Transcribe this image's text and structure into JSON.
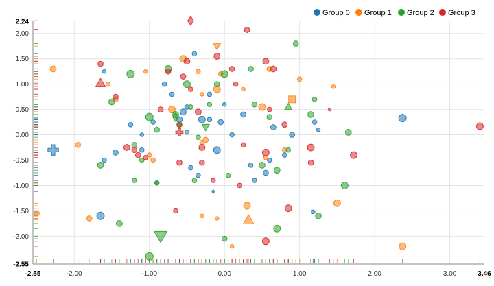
{
  "chart_data": {
    "type": "scatter",
    "title": "",
    "xlabel": "",
    "ylabel": "",
    "xlim": [
      -2.55,
      3.46
    ],
    "ylim": [
      -2.55,
      2.24
    ],
    "grid": true,
    "legend_position": "top-right",
    "x_ticks": [
      -2.0,
      -1.0,
      0.0,
      1.0,
      2.0,
      3.0
    ],
    "y_ticks": [
      -2.0,
      -1.5,
      -1.0,
      -0.5,
      0.0,
      0.5,
      1.0,
      1.5,
      2.0
    ],
    "x_tick_labels": [
      "-2.00",
      "-1.00",
      "0.00",
      "1.00",
      "2.00",
      "3.00"
    ],
    "y_tick_labels": [
      "-2.00",
      "-1.50",
      "-1.00",
      "-0.50",
      "0.00",
      "0.50",
      "1.00",
      "1.50",
      "2.00"
    ],
    "x_min_label": "-2.55",
    "x_max_label": "3.46",
    "y_min_label": "-2.55",
    "y_max_label": "2.24",
    "series": [
      {
        "name": "Group 0",
        "color": "#1f77b4",
        "points": [
          [
            -1.6,
            1.25,
            2.5,
            "circle"
          ],
          [
            -1.25,
            0.2,
            3,
            "circle"
          ],
          [
            -1.6,
            -0.5,
            3,
            "circle"
          ],
          [
            -1.45,
            -0.35,
            3.5,
            "circle"
          ],
          [
            -1.1,
            -0.3,
            3,
            "circle"
          ],
          [
            -0.95,
            0.25,
            3,
            "circle"
          ],
          [
            -0.9,
            -0.95,
            2.5,
            "circle"
          ],
          [
            -0.55,
            0.45,
            4,
            "circle"
          ],
          [
            -0.5,
            0.05,
            3,
            "circle"
          ],
          [
            -0.4,
            1.6,
            3,
            "circle"
          ],
          [
            -0.3,
            0.3,
            4.5,
            "circle"
          ],
          [
            -0.2,
            0.8,
            3,
            "circle"
          ],
          [
            -0.05,
            0.25,
            3.5,
            "circle"
          ],
          [
            0.0,
            0.6,
            2.5,
            "circle"
          ],
          [
            -0.1,
            -0.3,
            4.5,
            "circle"
          ],
          [
            0.1,
            0.0,
            3,
            "circle"
          ],
          [
            0.25,
            0.4,
            3.5,
            "circle"
          ],
          [
            0.35,
            -0.6,
            3,
            "circle"
          ],
          [
            0.4,
            -0.9,
            3,
            "circle"
          ],
          [
            0.55,
            -0.75,
            3.5,
            "circle"
          ],
          [
            0.6,
            -0.5,
            3,
            "circle"
          ],
          [
            0.65,
            0.15,
            3.5,
            "circle"
          ],
          [
            0.9,
            0.0,
            3.5,
            "circle"
          ],
          [
            1.2,
            0.25,
            3,
            "circle"
          ],
          [
            1.25,
            0.1,
            2.5,
            "circle"
          ],
          [
            -0.35,
            -0.8,
            3,
            "circle"
          ],
          [
            -0.45,
            -0.65,
            3,
            "circle"
          ],
          [
            -0.8,
            1.0,
            3,
            "circle"
          ],
          [
            -0.7,
            0.8,
            3,
            "circle"
          ],
          [
            -0.2,
            0.3,
            3,
            "circle"
          ],
          [
            -1.1,
            0.0,
            2.5,
            "circle"
          ],
          [
            2.37,
            0.33,
            5,
            "circle"
          ],
          [
            -1.65,
            -1.6,
            5,
            "circle"
          ],
          [
            -0.6,
            0.3,
            4,
            "circle"
          ],
          [
            -0.5,
            0.55,
            3,
            "circle"
          ],
          [
            0.8,
            -0.4,
            3,
            "circle"
          ],
          [
            1.18,
            -1.52,
            2.5,
            "circle"
          ],
          [
            -2.28,
            -0.3,
            5,
            "cross"
          ],
          [
            -0.15,
            -1.12,
            1.8,
            "diamond"
          ]
        ]
      },
      {
        "name": "Group 1",
        "color": "#ff7f0e",
        "points": [
          [
            -2.28,
            1.3,
            4,
            "circle"
          ],
          [
            -1.95,
            -0.2,
            3.5,
            "circle"
          ],
          [
            -1.8,
            -1.65,
            3.5,
            "circle"
          ],
          [
            -2.5,
            -1.55,
            3.5,
            "circle"
          ],
          [
            -1.45,
            0.7,
            3.5,
            "circle"
          ],
          [
            -1.55,
            1.0,
            3,
            "circle"
          ],
          [
            -1.0,
            -0.4,
            3,
            "circle"
          ],
          [
            -0.95,
            -0.5,
            3,
            "circle"
          ],
          [
            -0.7,
            0.5,
            4.5,
            "circle"
          ],
          [
            -0.55,
            1.5,
            4.5,
            "circle"
          ],
          [
            -0.35,
            1.25,
            3,
            "circle"
          ],
          [
            -0.3,
            0.8,
            2.5,
            "circle"
          ],
          [
            -0.25,
            -0.1,
            3.5,
            "circle"
          ],
          [
            -0.3,
            -0.15,
            3,
            "circle"
          ],
          [
            -0.1,
            0.9,
            4.5,
            "circle"
          ],
          [
            0.3,
            -1.4,
            4.5,
            "circle"
          ],
          [
            0.5,
            0.55,
            4.5,
            "circle"
          ],
          [
            0.55,
            -0.45,
            3,
            "circle"
          ],
          [
            0.6,
            1.3,
            3.5,
            "circle"
          ],
          [
            0.8,
            -0.3,
            3,
            "circle"
          ],
          [
            1.0,
            1.1,
            3,
            "circle"
          ],
          [
            1.45,
            0.95,
            2.5,
            "circle"
          ],
          [
            1.5,
            -1.35,
            4.5,
            "circle"
          ],
          [
            2.37,
            -2.2,
            4.5,
            "circle"
          ],
          [
            -0.1,
            -1.65,
            2.5,
            "circle"
          ],
          [
            -0.3,
            -1.6,
            2.5,
            "circle"
          ],
          [
            0.1,
            -2.2,
            2.5,
            "circle"
          ],
          [
            -0.05,
            1.2,
            3,
            "circle"
          ],
          [
            0.25,
            0.9,
            2.5,
            "circle"
          ],
          [
            -1.05,
            1.25,
            2.5,
            "circle"
          ],
          [
            -0.1,
            1.75,
            3.5,
            "tri_down"
          ],
          [
            0.9,
            0.7,
            4.5,
            "square"
          ],
          [
            0.32,
            -1.68,
            5,
            "triangle"
          ]
        ]
      },
      {
        "name": "Group 2",
        "color": "#2ca02c",
        "points": [
          [
            -1.65,
            -0.6,
            4,
            "circle"
          ],
          [
            -1.5,
            0.65,
            4,
            "circle"
          ],
          [
            -1.25,
            1.2,
            5,
            "circle"
          ],
          [
            -1.2,
            -0.2,
            3.5,
            "circle"
          ],
          [
            -1.1,
            -0.5,
            3,
            "circle"
          ],
          [
            -1.0,
            0.35,
            5,
            "circle"
          ],
          [
            -0.9,
            0.1,
            3.5,
            "circle"
          ],
          [
            -0.9,
            -0.95,
            3,
            "circle"
          ],
          [
            -0.75,
            1.3,
            4.5,
            "circle"
          ],
          [
            -0.65,
            0.4,
            4,
            "circle"
          ],
          [
            -0.5,
            1.0,
            4.5,
            "circle"
          ],
          [
            -0.45,
            0.55,
            3,
            "circle"
          ],
          [
            -0.4,
            -0.9,
            3,
            "circle"
          ],
          [
            -0.35,
            -0.05,
            3,
            "circle"
          ],
          [
            0.0,
            1.2,
            4.5,
            "circle"
          ],
          [
            -0.1,
            1.0,
            3.5,
            "circle"
          ],
          [
            0.0,
            -2.05,
            3.5,
            "circle"
          ],
          [
            0.35,
            1.3,
            3.5,
            "circle"
          ],
          [
            0.4,
            0.6,
            3.5,
            "circle"
          ],
          [
            0.5,
            -0.6,
            4,
            "circle"
          ],
          [
            0.6,
            0.35,
            3.5,
            "circle"
          ],
          [
            0.7,
            -0.7,
            4,
            "circle"
          ],
          [
            0.85,
            -0.3,
            3,
            "circle"
          ],
          [
            0.95,
            1.8,
            3.5,
            "circle"
          ],
          [
            1.15,
            0.4,
            4,
            "circle"
          ],
          [
            1.2,
            0.7,
            3,
            "circle"
          ],
          [
            1.25,
            -1.6,
            4,
            "circle"
          ],
          [
            1.65,
            0.05,
            4,
            "circle"
          ],
          [
            1.6,
            -1.0,
            4.5,
            "circle"
          ],
          [
            0.7,
            -1.85,
            4.5,
            "circle"
          ],
          [
            -1.4,
            -1.75,
            4,
            "circle"
          ],
          [
            -1.2,
            -0.9,
            3,
            "circle"
          ],
          [
            -1.0,
            -2.4,
            5,
            "circle"
          ],
          [
            -0.2,
            0.6,
            3,
            "circle"
          ],
          [
            -0.6,
            0.2,
            3.5,
            "circle"
          ],
          [
            0.05,
            -0.8,
            3,
            "circle"
          ],
          [
            -0.85,
            -2.0,
            6,
            "tri_down"
          ],
          [
            -0.25,
            0.15,
            3.5,
            "tri_down"
          ],
          [
            0.85,
            0.55,
            3.5,
            "triangle"
          ],
          [
            -0.65,
            0.35,
            4,
            "diamond"
          ]
        ]
      },
      {
        "name": "Group 3",
        "color": "#d62728",
        "points": [
          [
            -1.45,
            0.75,
            3.5,
            "circle"
          ],
          [
            -1.3,
            -0.25,
            4,
            "circle"
          ],
          [
            -1.2,
            -0.3,
            3.5,
            "circle"
          ],
          [
            -1.15,
            -0.4,
            3.5,
            "circle"
          ],
          [
            -1.05,
            -0.45,
            3,
            "circle"
          ],
          [
            -0.85,
            0.5,
            3.5,
            "circle"
          ],
          [
            -0.75,
            1.25,
            3.5,
            "circle"
          ],
          [
            -0.6,
            -0.55,
            3.5,
            "circle"
          ],
          [
            -0.5,
            1.45,
            4,
            "circle"
          ],
          [
            -0.45,
            0.9,
            3,
            "circle"
          ],
          [
            -0.35,
            0.45,
            4,
            "circle"
          ],
          [
            -0.3,
            -0.25,
            4,
            "circle"
          ],
          [
            -0.15,
            -0.9,
            3,
            "circle"
          ],
          [
            -0.1,
            1.55,
            4,
            "circle"
          ],
          [
            0.1,
            1.3,
            3.5,
            "circle"
          ],
          [
            0.15,
            1.0,
            3,
            "circle"
          ],
          [
            0.25,
            -0.2,
            3,
            "circle"
          ],
          [
            0.3,
            2.07,
            3.5,
            "circle"
          ],
          [
            0.55,
            1.45,
            4,
            "circle"
          ],
          [
            0.6,
            0.5,
            3,
            "circle"
          ],
          [
            0.65,
            1.3,
            4,
            "circle"
          ],
          [
            0.8,
            0.2,
            3.5,
            "circle"
          ],
          [
            0.55,
            -0.35,
            4.5,
            "circle"
          ],
          [
            0.55,
            -2.1,
            4.5,
            "circle"
          ],
          [
            0.85,
            -1.45,
            4.5,
            "circle"
          ],
          [
            1.15,
            -0.25,
            4.5,
            "circle"
          ],
          [
            1.15,
            -0.55,
            3.5,
            "circle"
          ],
          [
            1.72,
            -0.4,
            4.5,
            "circle"
          ],
          [
            3.4,
            0.17,
            4.5,
            "circle"
          ],
          [
            -0.6,
            0.2,
            3,
            "circle"
          ],
          [
            -0.3,
            -0.55,
            3.5,
            "circle"
          ],
          [
            -0.65,
            -1.5,
            3,
            "circle"
          ],
          [
            -1.65,
            1.4,
            3.5,
            "circle"
          ],
          [
            -0.55,
            1.15,
            3.5,
            "circle"
          ],
          [
            1.4,
            0.5,
            2,
            "circle"
          ],
          [
            0.2,
            -1.0,
            3,
            "circle"
          ],
          [
            -0.45,
            2.25,
            4,
            "diamond"
          ],
          [
            -1.65,
            1.02,
            4.5,
            "triangle"
          ],
          [
            -0.6,
            0.05,
            3.5,
            "cross"
          ]
        ]
      }
    ]
  }
}
